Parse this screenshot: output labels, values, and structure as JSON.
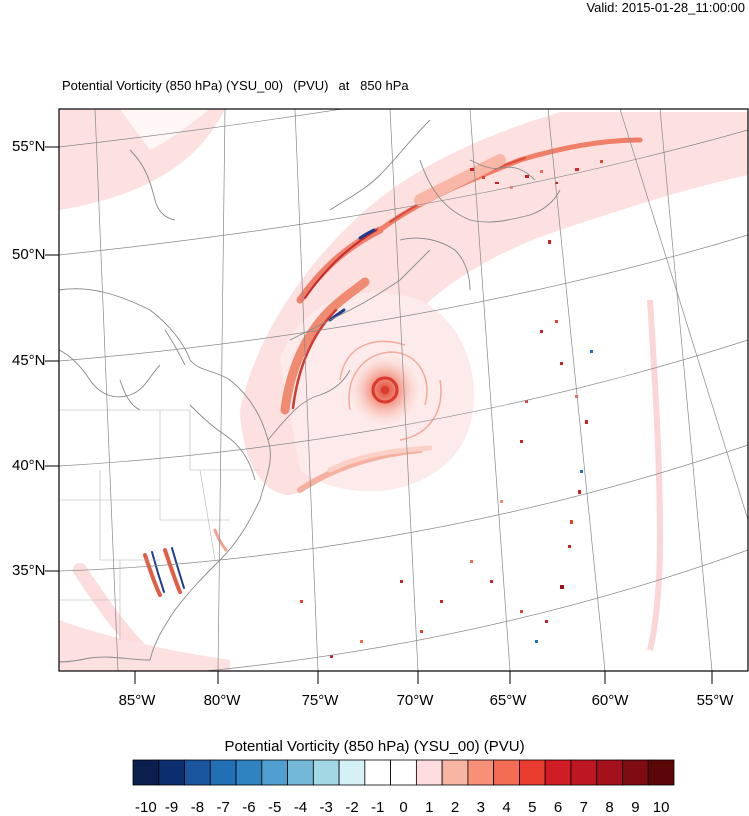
{
  "header": {
    "valid_text": "Valid: 2015-01-28_11:00:00",
    "title_field": "Potential Vorticity (850 hPa) (YSU_00)",
    "title_units": "(PVU)",
    "title_level": "at   850 hPa"
  },
  "map": {
    "lat_labels": [
      "55°N",
      "50°N",
      "45°N",
      "40°N",
      "35°N"
    ],
    "lon_labels": [
      "85°W",
      "80°W",
      "75°W",
      "70°W",
      "65°W",
      "60°W",
      "55°W"
    ],
    "features": [
      "storm-center",
      "frontal-bands",
      "north-atlantic-ocean",
      "north-america-coastline"
    ]
  },
  "colorbar": {
    "title": "Potential Vorticity (850 hPa) (YSU_00)  (PVU)",
    "labels": [
      "-10",
      "-9",
      "-8",
      "-7",
      "-6",
      "-5",
      "-4",
      "-3",
      "-2",
      "-1",
      "0",
      "1",
      "2",
      "3",
      "4",
      "5",
      "6",
      "7",
      "8",
      "9",
      "10"
    ],
    "colors": [
      "#0a1f4e",
      "#0d2e6e",
      "#1a56a0",
      "#2170b5",
      "#2f83c0",
      "#4f9fd0",
      "#74b8d8",
      "#a3d7e3",
      "#d4f1f8",
      "#ffffff",
      "#ffffff",
      "#fcdcdc",
      "#f8b5a4",
      "#f79077",
      "#f36c54",
      "#ea3c2e",
      "#d01c24",
      "#bf1722",
      "#a3121c",
      "#7e0c12",
      "#5c0607"
    ]
  }
}
